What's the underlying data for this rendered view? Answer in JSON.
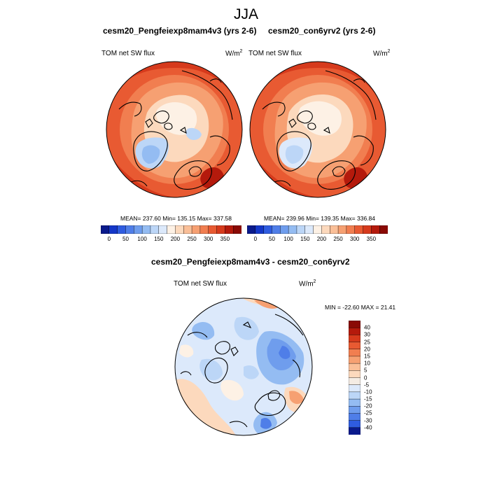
{
  "page": {
    "title": "JJA"
  },
  "panels": [
    {
      "title": "cesm20_Pengfeiexp8mam4v3 (yrs 2-6)",
      "variable": "TOM net SW flux",
      "units": "W/m",
      "units_exp": "2",
      "stats": "MEAN= 237.60  Min= 135.15  Max= 337.58"
    },
    {
      "title": "cesm20_con6yrv2 (yrs 2-6)",
      "variable": "TOM net SW flux",
      "units": "W/m",
      "units_exp": "2",
      "stats": "MEAN= 239.96  Min= 139.35  Max= 336.84"
    }
  ],
  "diff_panel": {
    "title": "cesm20_Pengfeiexp8mam4v3 - cesm20_con6yrv2",
    "variable": "TOM net SW flux",
    "units": "W/m",
    "units_exp": "2",
    "stats": "MIN = -22.60 MAX =  21.41"
  },
  "colorbar_abs": {
    "labels": [
      "0",
      "50",
      "100",
      "150",
      "200",
      "250",
      "300",
      "350"
    ],
    "colors": [
      "#0a1a8c",
      "#1437c8",
      "#2f5ce0",
      "#4f7ee8",
      "#6f9ded",
      "#94bcf2",
      "#bcd6f7",
      "#dce9fb",
      "#fdf1e5",
      "#fcd9bd",
      "#fabf98",
      "#f6a072",
      "#f17e50",
      "#e85a32",
      "#d63a1c",
      "#b41a0c",
      "#8a0a05"
    ]
  },
  "colorbar_diff": {
    "labels": [
      "40",
      "30",
      "25",
      "20",
      "15",
      "10",
      "5",
      "0",
      "-5",
      "-10",
      "-15",
      "-20",
      "-25",
      "-30",
      "-40"
    ],
    "colors": [
      "#8a0a05",
      "#b41a0c",
      "#d63a1c",
      "#e85a32",
      "#f17e50",
      "#f6a072",
      "#fabf98",
      "#fcd9bd",
      "#f4ece4",
      "#dce9fb",
      "#bcd6f7",
      "#94bcf2",
      "#6f9ded",
      "#4f7ee8",
      "#2f5ce0",
      "#0a1a8c"
    ]
  }
}
